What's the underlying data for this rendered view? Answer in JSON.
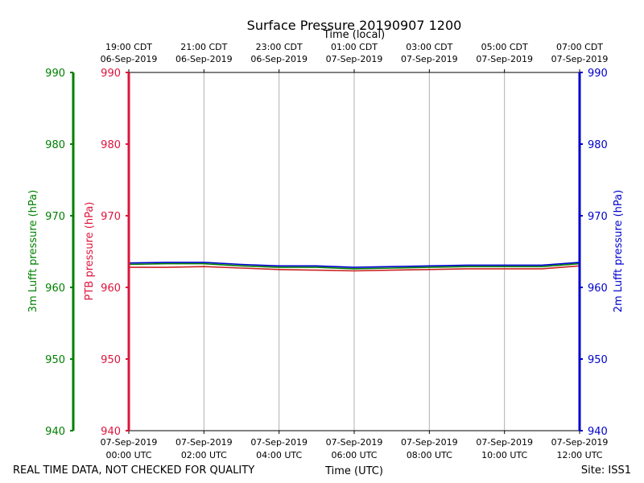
{
  "chart_data": {
    "type": "line",
    "title": "Surface Pressure 20190907 1200",
    "top_axis_label": "Time (local)",
    "xlabel": "Time (UTC)",
    "footer_left": "REAL TIME DATA, NOT CHECKED FOR QUALITY",
    "footer_right": "Site: ISS1",
    "x_range_hours_utc": [
      0,
      12
    ],
    "ylim": [
      940,
      990
    ],
    "yticks": [
      940,
      950,
      960,
      970,
      980,
      990
    ],
    "grid": "vertical",
    "x_ticks": [
      {
        "hour": 0,
        "utc_date": "07-Sep-2019",
        "utc_time": "00:00 UTC",
        "local_time": "19:00 CDT",
        "local_date": "06-Sep-2019"
      },
      {
        "hour": 2,
        "utc_date": "07-Sep-2019",
        "utc_time": "02:00 UTC",
        "local_time": "21:00 CDT",
        "local_date": "06-Sep-2019"
      },
      {
        "hour": 4,
        "utc_date": "07-Sep-2019",
        "utc_time": "04:00 UTC",
        "local_time": "23:00 CDT",
        "local_date": "06-Sep-2019"
      },
      {
        "hour": 6,
        "utc_date": "07-Sep-2019",
        "utc_time": "06:00 UTC",
        "local_time": "01:00 CDT",
        "local_date": "07-Sep-2019"
      },
      {
        "hour": 8,
        "utc_date": "07-Sep-2019",
        "utc_time": "08:00 UTC",
        "local_time": "03:00 CDT",
        "local_date": "07-Sep-2019"
      },
      {
        "hour": 10,
        "utc_date": "07-Sep-2019",
        "utc_time": "10:00 UTC",
        "local_time": "05:00 CDT",
        "local_date": "07-Sep-2019"
      },
      {
        "hour": 12,
        "utc_date": "07-Sep-2019",
        "utc_time": "12:00 UTC",
        "local_time": "07:00 CDT",
        "local_date": "07-Sep-2019"
      }
    ],
    "axes": {
      "left_outer": {
        "label": "3m Lufft pressure (hPa)",
        "color": "#008000"
      },
      "left_inner": {
        "label": "PTB pressure (hPa)",
        "color": "#dc143c"
      },
      "right": {
        "label": "2m Lufft pressure (hPa)",
        "color": "#0000cd"
      }
    },
    "series": [
      {
        "color": "#cc2222",
        "x": [
          0,
          1,
          2,
          3,
          4,
          5,
          6,
          7,
          8,
          9,
          10,
          11,
          12
        ],
        "values": [
          962.8,
          962.8,
          962.9,
          962.7,
          962.5,
          962.4,
          962.3,
          962.4,
          962.5,
          962.6,
          962.6,
          962.6,
          963.0
        ]
      },
      {
        "color": "#008000",
        "x": [
          0,
          1,
          2,
          3,
          4,
          5,
          6,
          7,
          8,
          9,
          10,
          11,
          12
        ],
        "values": [
          963.2,
          963.3,
          963.3,
          963.0,
          962.8,
          962.8,
          962.6,
          962.7,
          962.8,
          962.9,
          962.9,
          962.9,
          963.3
        ]
      },
      {
        "color": "#0000cd",
        "x": [
          0,
          1,
          2,
          3,
          4,
          5,
          6,
          7,
          8,
          9,
          10,
          11,
          12
        ],
        "values": [
          963.4,
          963.5,
          963.5,
          963.2,
          963.0,
          963.0,
          962.8,
          962.9,
          963.0,
          963.1,
          963.1,
          963.1,
          963.5
        ]
      }
    ]
  }
}
